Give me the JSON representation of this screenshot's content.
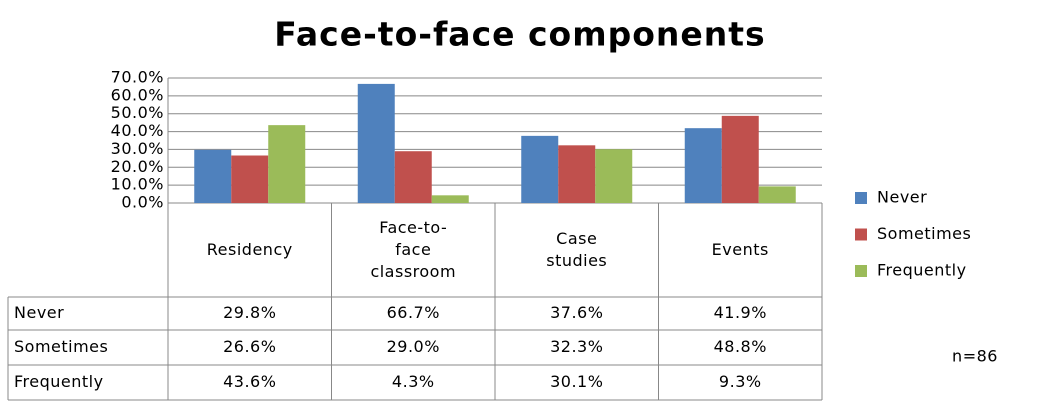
{
  "chart_data": {
    "type": "bar",
    "title": "Face-to-face components",
    "categories": [
      "Residency",
      "Face-to-face classroom",
      "Case studies",
      "Events"
    ],
    "series": [
      {
        "name": "Never",
        "color": "#4f81bd",
        "values": [
          29.8,
          66.7,
          37.6,
          41.9
        ],
        "value_labels": [
          "29.8%",
          "66.7%",
          "37.6%",
          "41.9%"
        ]
      },
      {
        "name": "Sometimes",
        "color": "#c0504d",
        "values": [
          26.6,
          29.0,
          32.3,
          48.8
        ],
        "value_labels": [
          "26.6%",
          "29.0%",
          "32.3%",
          "48.8%"
        ]
      },
      {
        "name": "Frequently",
        "color": "#9bbb59",
        "values": [
          43.6,
          4.3,
          30.1,
          9.3
        ],
        "value_labels": [
          "43.6%",
          "4.3%",
          "30.1%",
          "9.3%"
        ]
      }
    ],
    "ylim": [
      0,
      70
    ],
    "yticks": [
      {
        "value": 0,
        "label": "0.0%"
      },
      {
        "value": 10,
        "label": "10.0%"
      },
      {
        "value": 20,
        "label": "20.0%"
      },
      {
        "value": 30,
        "label": "30.0%"
      },
      {
        "value": 40,
        "label": "40.0%"
      },
      {
        "value": 50,
        "label": "50.0%"
      },
      {
        "value": 60,
        "label": "60.0%"
      },
      {
        "value": 70,
        "label": "70.0%"
      }
    ],
    "grid": true,
    "legend": "right",
    "annotation": "n=86"
  }
}
